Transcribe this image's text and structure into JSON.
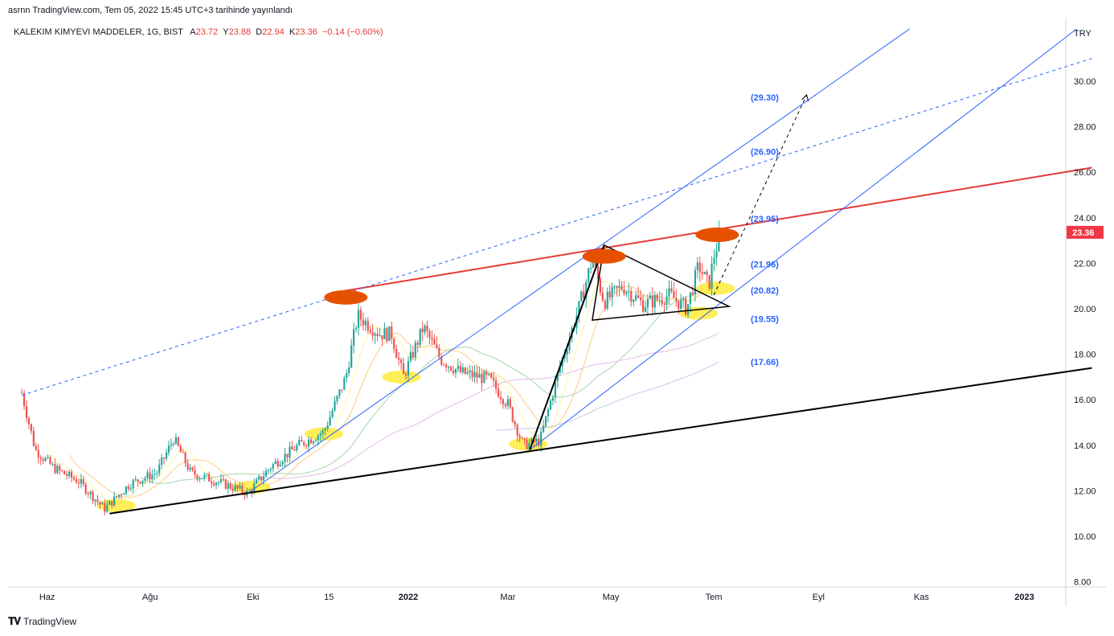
{
  "header": {
    "published": "asrnn TradingView.com, Tem 05, 2022 15:45 UTC+3 tarihinde yayınlandı"
  },
  "legend": {
    "symbol": "KALEKIM KIMYEVI MADDELER, 1G, BIST",
    "open_label": "A",
    "open_value": "23.72",
    "high_label": "Y",
    "high_value": "23.88",
    "low_label": "D",
    "low_value": "22.94",
    "close_label": "K",
    "close_value": "23.36",
    "change": "−0.14 (−0.60%)"
  },
  "branding": {
    "label": "TradingView"
  },
  "colors": {
    "up": "#26a69a",
    "down": "#ef5350",
    "price_tag": "#f23645",
    "channel": "#2962ff",
    "resistance": "#e53935",
    "marker_orange": "#e65100",
    "marker_yellow": "#ffeb3b"
  },
  "chart_data": {
    "type": "candlestick",
    "currency": "TRY",
    "last_price": "23.36",
    "x_ticks": [
      {
        "label": "Haz",
        "date": "2021-06-01",
        "bold": false
      },
      {
        "label": "Ağu",
        "date": "2021-08-01",
        "bold": false
      },
      {
        "label": "Eki",
        "date": "2021-10-01",
        "bold": false
      },
      {
        "label": "15",
        "date": "2021-11-15",
        "bold": false
      },
      {
        "label": "2022",
        "date": "2022-01-01",
        "bold": true
      },
      {
        "label": "Mar",
        "date": "2022-03-01",
        "bold": false
      },
      {
        "label": "May",
        "date": "2022-05-01",
        "bold": false
      },
      {
        "label": "Tem",
        "date": "2022-07-01",
        "bold": false
      },
      {
        "label": "Eyl",
        "date": "2022-09-01",
        "bold": false
      },
      {
        "label": "Kas",
        "date": "2022-11-01",
        "bold": false
      },
      {
        "label": "2023",
        "date": "2023-01-01",
        "bold": true
      }
    ],
    "y_ticks": [
      "8.00",
      "10.00",
      "12.00",
      "14.00",
      "16.00",
      "18.00",
      "20.00",
      "22.00",
      "24.00",
      "26.00",
      "28.00",
      "30.00"
    ],
    "ylim": [
      7.5,
      32
    ],
    "price_levels": [
      "(29.30)",
      "(26.90)",
      "(23.95)",
      "(21.96)",
      "(20.82)",
      "(19.55)",
      "(17.66)"
    ],
    "close_path": [
      {
        "date": "2021-05-17",
        "close": 16.3
      },
      {
        "date": "2021-05-25",
        "close": 13.8
      },
      {
        "date": "2021-06-05",
        "close": 13.0
      },
      {
        "date": "2021-06-20",
        "close": 12.4
      },
      {
        "date": "2021-07-05",
        "close": 11.2
      },
      {
        "date": "2021-07-20",
        "close": 12.3
      },
      {
        "date": "2021-08-05",
        "close": 12.8
      },
      {
        "date": "2021-08-15",
        "close": 14.3
      },
      {
        "date": "2021-08-25",
        "close": 12.8
      },
      {
        "date": "2021-09-10",
        "close": 12.4
      },
      {
        "date": "2021-09-28",
        "close": 11.9
      },
      {
        "date": "2021-10-12",
        "close": 13.1
      },
      {
        "date": "2021-10-28",
        "close": 14.0
      },
      {
        "date": "2021-11-12",
        "close": 14.6
      },
      {
        "date": "2021-11-25",
        "close": 17.0
      },
      {
        "date": "2021-12-02",
        "close": 19.7
      },
      {
        "date": "2021-12-15",
        "close": 18.9
      },
      {
        "date": "2021-12-22",
        "close": 18.9
      },
      {
        "date": "2021-12-29",
        "close": 17.0
      },
      {
        "date": "2022-01-10",
        "close": 19.2
      },
      {
        "date": "2022-01-20",
        "close": 17.8
      },
      {
        "date": "2022-02-01",
        "close": 17.2
      },
      {
        "date": "2022-02-18",
        "close": 16.9
      },
      {
        "date": "2022-03-01",
        "close": 15.8
      },
      {
        "date": "2022-03-10",
        "close": 14.0
      },
      {
        "date": "2022-03-20",
        "close": 14.2
      },
      {
        "date": "2022-04-01",
        "close": 17.5
      },
      {
        "date": "2022-04-12",
        "close": 20.0
      },
      {
        "date": "2022-04-20",
        "close": 22.2
      },
      {
        "date": "2022-04-27",
        "close": 20.3
      },
      {
        "date": "2022-05-08",
        "close": 21.0
      },
      {
        "date": "2022-05-20",
        "close": 20.2
      },
      {
        "date": "2022-06-05",
        "close": 20.6
      },
      {
        "date": "2022-06-15",
        "close": 20.0
      },
      {
        "date": "2022-06-22",
        "close": 21.9
      },
      {
        "date": "2022-06-28",
        "close": 21.0
      },
      {
        "date": "2022-07-01",
        "close": 22.3
      },
      {
        "date": "2022-07-05",
        "close": 23.36
      }
    ],
    "trend_lines": [
      {
        "name": "support",
        "color": "#000000",
        "from": {
          "date": "2021-07-08",
          "price": 11.0
        },
        "to": {
          "date": "2023-02-10",
          "price": 17.4
        }
      },
      {
        "name": "resistance",
        "color": "#e53935",
        "from": {
          "date": "2021-11-17",
          "price": 20.7
        },
        "to": {
          "date": "2023-02-10",
          "price": 26.2
        }
      },
      {
        "name": "channel-upper",
        "color": "#2962ff",
        "from": {
          "date": "2021-09-28",
          "price": 11.9
        },
        "to": {
          "date": "2022-10-25",
          "price": 32.3
        }
      },
      {
        "name": "channel-lower",
        "color": "#2962ff",
        "from": {
          "date": "2022-03-14",
          "price": 13.8
        },
        "to": {
          "date": "2023-02-01",
          "price": 32.3
        }
      },
      {
        "name": "channel-dashed",
        "color": "#2962ff",
        "dashed": true,
        "from": {
          "date": "2021-05-17",
          "price": 16.2
        },
        "to": {
          "date": "2023-02-10",
          "price": 31.0
        }
      },
      {
        "name": "projection",
        "color": "#000000",
        "dashed": true,
        "from": {
          "date": "2022-07-01",
          "price": 20.6
        },
        "to": {
          "date": "2022-08-25",
          "price": 29.4
        }
      }
    ],
    "triangle": [
      {
        "date": "2022-04-27",
        "price": 22.8
      },
      {
        "date": "2022-07-10",
        "price": 20.1
      },
      {
        "date": "2022-04-20",
        "price": 19.5
      }
    ],
    "flagpole": [
      {
        "date": "2022-03-14",
        "price": 13.8
      },
      {
        "date": "2022-04-27",
        "price": 22.8
      }
    ],
    "markers_orange": [
      {
        "date": "2021-11-25",
        "price": 20.5
      },
      {
        "date": "2022-04-27",
        "price": 22.3
      },
      {
        "date": "2022-07-03",
        "price": 23.25
      }
    ],
    "markers_yellow": [
      {
        "date": "2021-07-12",
        "price": 11.35
      },
      {
        "date": "2021-09-30",
        "price": 12.15
      },
      {
        "date": "2021-11-12",
        "price": 14.5
      },
      {
        "date": "2021-12-28",
        "price": 17.0
      },
      {
        "date": "2022-03-13",
        "price": 14.05
      },
      {
        "date": "2022-06-22",
        "price": 19.8
      },
      {
        "date": "2022-07-02",
        "price": 20.9
      }
    ]
  }
}
